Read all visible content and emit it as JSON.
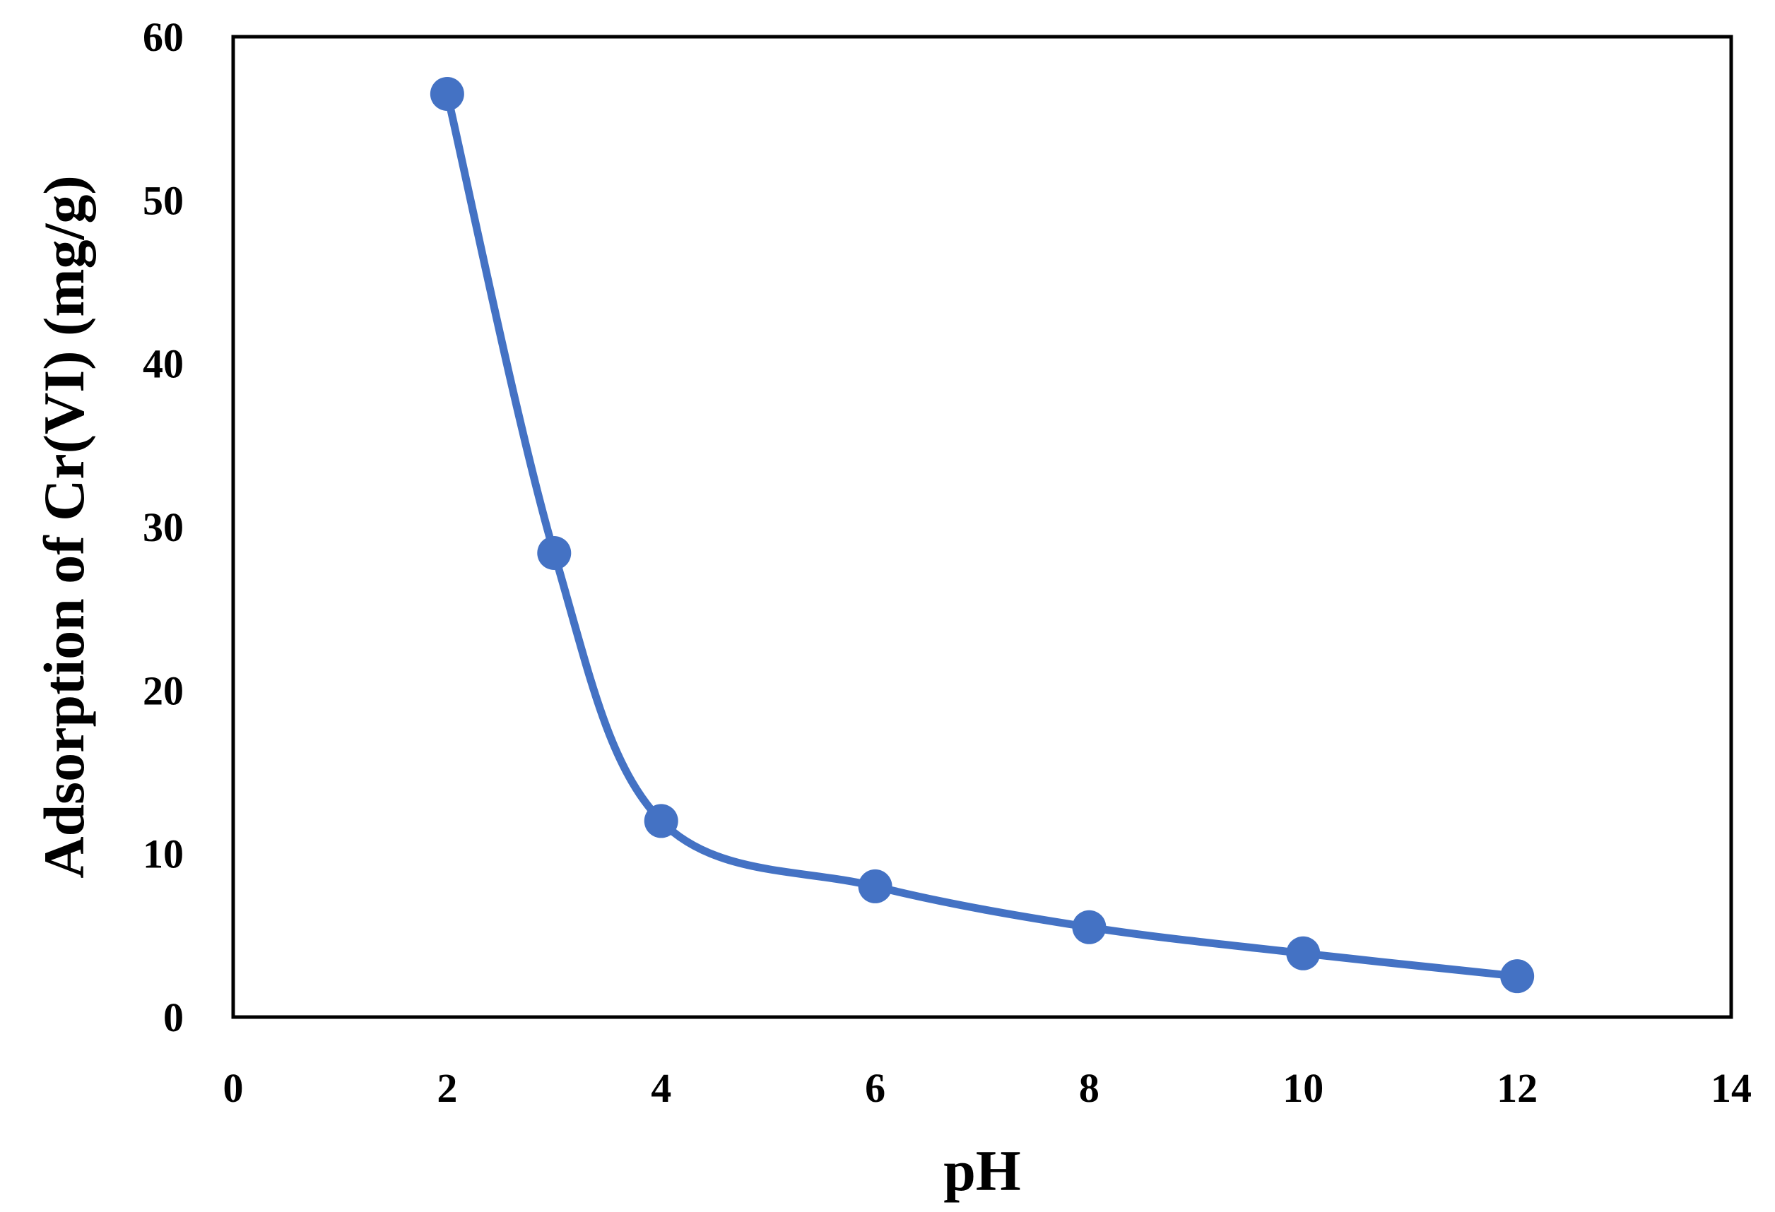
{
  "chart_data": {
    "type": "line",
    "title": "",
    "xlabel": "pH",
    "ylabel": "Adsorption of Cr(VI) (mg/g)",
    "xlim": [
      0,
      14
    ],
    "ylim": [
      0,
      60
    ],
    "xticks": [
      0,
      2,
      4,
      6,
      8,
      10,
      12,
      14
    ],
    "yticks": [
      0,
      10,
      20,
      30,
      40,
      50,
      60
    ],
    "grid": false,
    "legend": "none",
    "smooth": true,
    "series": [
      {
        "color": "#4472c4",
        "marker": "circle",
        "x": [
          2,
          3,
          4,
          6,
          8,
          10,
          12
        ],
        "y": [
          56.5,
          28.4,
          12.0,
          8.0,
          5.5,
          3.9,
          2.5
        ]
      }
    ]
  }
}
